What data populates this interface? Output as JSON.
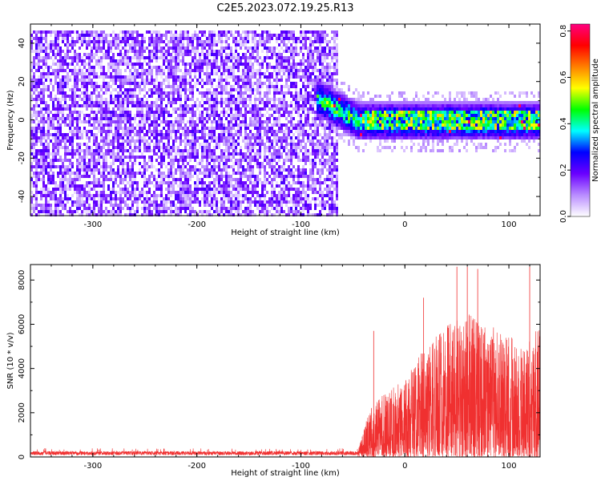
{
  "figure_title": "C2E5.2023.072.19.25.R13",
  "chart_data": [
    {
      "id": "spectrogram",
      "type": "heatmap",
      "title": "C2E5.2023.072.19.25.R13",
      "xlabel": "Height of straight line (km)",
      "ylabel": "Frequency (Hz)",
      "xlim": [
        -360,
        130
      ],
      "ylim": [
        -50,
        50
      ],
      "x_ticks": [
        -300,
        -200,
        -100,
        0,
        100
      ],
      "y_ticks": [
        -40,
        -20,
        0,
        20,
        40
      ],
      "x_tick_labels": [
        "-300",
        "-200",
        "-100",
        "0",
        "100"
      ],
      "y_tick_labels": [
        "-40",
        "-20",
        "0",
        "20",
        "40"
      ],
      "noise_region": {
        "x_range": [
          -360,
          -65
        ],
        "freq_range": [
          -50,
          48
        ],
        "amplitude_range": [
          0.02,
          0.22
        ]
      },
      "signal_band": {
        "x_range": [
          -85,
          130
        ],
        "center_freq_start": 12,
        "center_freq_end": 0,
        "half_width_hz": 10,
        "amplitude_peak": 0.8
      },
      "colorbar": {
        "label": "Normalized spectral amplitude",
        "range": [
          0.0,
          0.83
        ],
        "ticks": [
          0.0,
          0.2,
          0.4,
          0.6,
          0.8
        ],
        "tick_labels": [
          "0.0",
          "0.2",
          "0.4",
          "0.6",
          "0.8"
        ],
        "colors": [
          "#ffffff",
          "#b98cff",
          "#6a00ff",
          "#0000ff",
          "#00ffff",
          "#00ff00",
          "#ffff00",
          "#ff8000",
          "#ff0000",
          "#ff0080"
        ]
      }
    },
    {
      "id": "snr",
      "type": "line",
      "xlabel": "Height of straight line (km)",
      "ylabel": "SNR (10 * v/v)",
      "xlim": [
        -360,
        130
      ],
      "ylim": [
        0,
        8700
      ],
      "x_ticks": [
        -300,
        -200,
        -100,
        0,
        100
      ],
      "y_ticks": [
        0,
        2000,
        4000,
        6000,
        8000
      ],
      "x_tick_labels": [
        "-300",
        "-200",
        "-100",
        "0",
        "100"
      ],
      "y_tick_labels": [
        "0",
        "2000",
        "4000",
        "6000",
        "8000"
      ],
      "color": "#f03030",
      "baseline": {
        "x_range": [
          -360,
          -45
        ],
        "level": 200,
        "max": 400
      },
      "envelope": [
        {
          "x": -45,
          "value": 300
        },
        {
          "x": -38,
          "value": 1500
        },
        {
          "x": -30,
          "value": 2500
        },
        {
          "x": -15,
          "value": 3000
        },
        {
          "x": 0,
          "value": 3500
        },
        {
          "x": 20,
          "value": 5000
        },
        {
          "x": 40,
          "value": 6000
        },
        {
          "x": 60,
          "value": 6500
        },
        {
          "x": 80,
          "value": 6000
        },
        {
          "x": 100,
          "value": 5500
        },
        {
          "x": 115,
          "value": 5000
        },
        {
          "x": 130,
          "value": 6000
        }
      ],
      "peaks": [
        {
          "x": -30,
          "value": 5700
        },
        {
          "x": 18,
          "value": 7200
        },
        {
          "x": 50,
          "value": 8600
        },
        {
          "x": 60,
          "value": 8600
        },
        {
          "x": 70,
          "value": 8500
        },
        {
          "x": 120,
          "value": 8600
        }
      ]
    }
  ]
}
